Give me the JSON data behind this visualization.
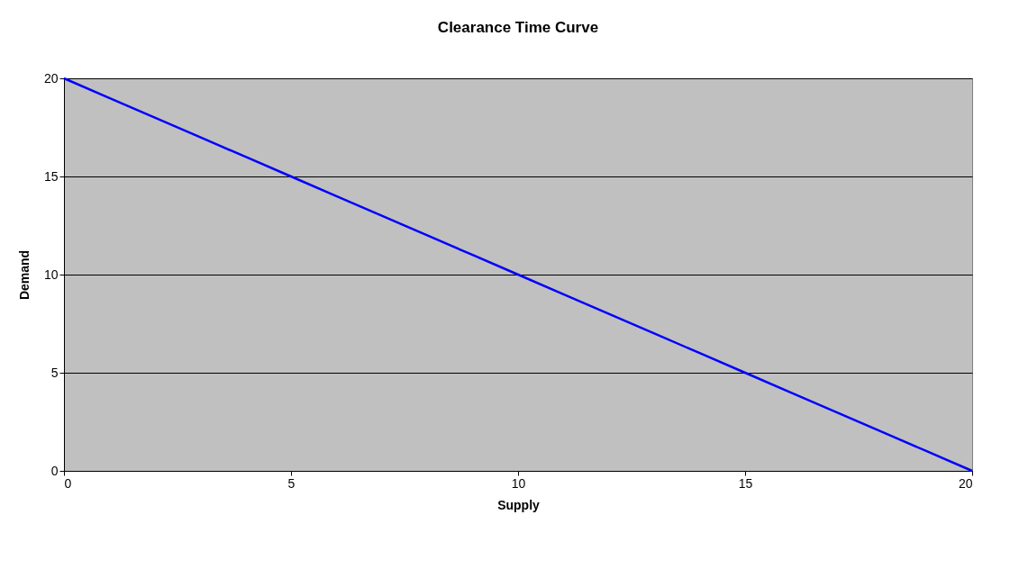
{
  "chart_data": {
    "type": "line",
    "title": "Clearance Time Curve",
    "xlabel": "Supply",
    "ylabel": "Demand",
    "x": [
      0,
      1,
      2,
      3,
      4,
      5,
      6,
      7,
      8,
      9,
      10,
      11,
      12,
      13,
      14,
      15,
      16,
      17,
      18,
      19,
      20
    ],
    "series": [
      {
        "color": "#0000ff",
        "values": [
          20,
          19,
          18,
          17,
          16,
          15,
          14,
          13,
          12,
          11,
          10,
          9,
          8,
          7,
          6,
          5,
          4,
          3,
          2,
          1,
          0
        ]
      }
    ],
    "xlim": [
      0,
      20
    ],
    "xticks": [
      0,
      5,
      10,
      15,
      20
    ],
    "ylim": [
      0,
      20
    ],
    "yticks": [
      0,
      5,
      10,
      15,
      20
    ],
    "grid": "y",
    "marker": "none",
    "line_style": "solid"
  }
}
